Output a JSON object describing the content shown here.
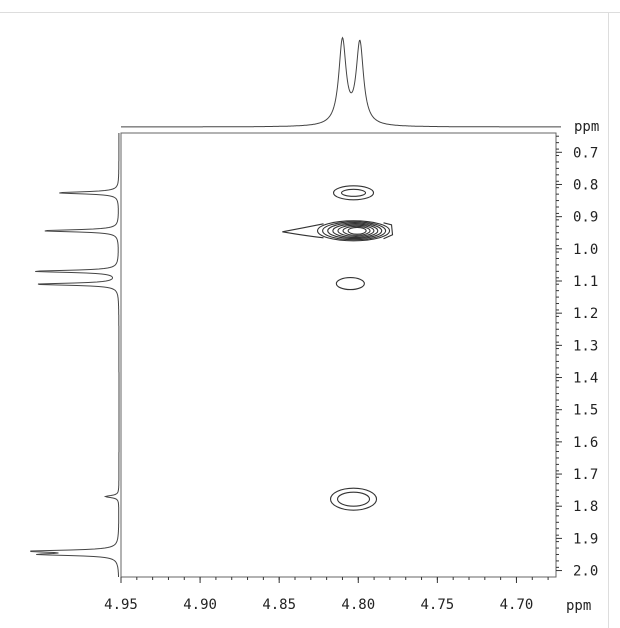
{
  "chart_data": {
    "type": "contour",
    "x_axis": {
      "unit_label": "ppm",
      "range": [
        4.95,
        4.675
      ],
      "reversed": true,
      "ticks": [
        4.95,
        4.9,
        4.85,
        4.8,
        4.75,
        4.7
      ],
      "tick_labels": [
        "4.95",
        "4.90",
        "4.85",
        "4.80",
        "4.75",
        "4.70"
      ]
    },
    "y_axis": {
      "unit_label": "ppm",
      "range": [
        0.64,
        2.02
      ],
      "reversed": true,
      "position": "right",
      "ticks": [
        0.7,
        0.8,
        0.9,
        1.0,
        1.1,
        1.2,
        1.3,
        1.4,
        1.5,
        1.6,
        1.7,
        1.8,
        1.9,
        2.0
      ],
      "tick_labels": [
        "0.7",
        "0.8",
        "0.9",
        "1.0",
        "1.1",
        "1.2",
        "1.3",
        "1.4",
        "1.5",
        "1.6",
        "1.7",
        "1.8",
        "1.9",
        "2.0"
      ]
    },
    "cross_peaks": [
      {
        "x": 4.803,
        "y": 0.826,
        "levels": 2
      },
      {
        "x": 4.803,
        "y": 0.944,
        "levels": 7
      },
      {
        "x": 4.805,
        "y": 1.108,
        "levels": 1
      },
      {
        "x": 4.803,
        "y": 1.778,
        "levels": 2
      }
    ],
    "top_projection": {
      "axis": "x",
      "peaks": [
        {
          "x": 4.81,
          "intensity": 1.0
        },
        {
          "x": 4.799,
          "intensity": 0.97
        }
      ]
    },
    "left_projection": {
      "axis": "y",
      "peaks": [
        {
          "y": 0.826,
          "intensity": 0.72
        },
        {
          "y": 0.944,
          "intensity": 0.9
        },
        {
          "y": 1.07,
          "intensity": 1.0
        },
        {
          "y": 1.11,
          "intensity": 0.98
        },
        {
          "y": 1.77,
          "intensity": 0.16
        },
        {
          "y": 1.94,
          "intensity": 1.0
        },
        {
          "y": 1.95,
          "intensity": 0.85
        }
      ]
    },
    "grid": false,
    "legend": "none"
  }
}
